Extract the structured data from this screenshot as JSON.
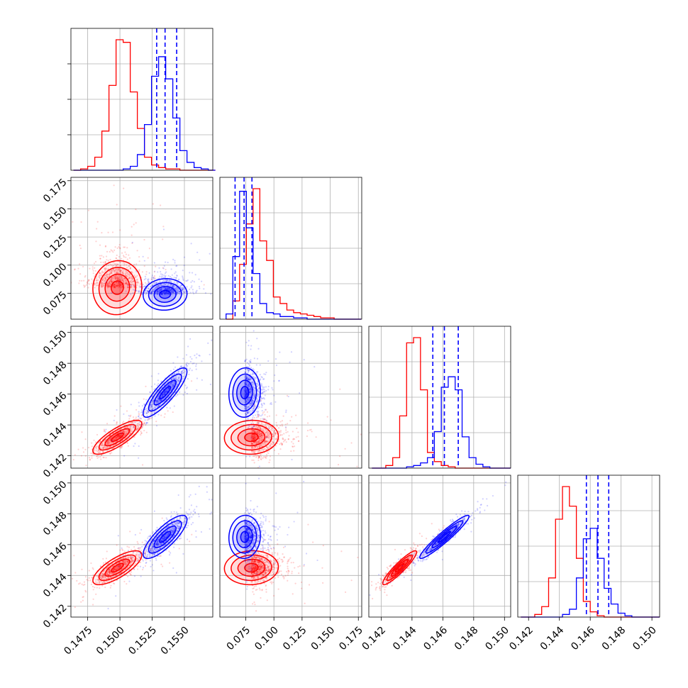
{
  "chart_data": {
    "type": "corner",
    "n_params": 4,
    "colors": {
      "red_set": "#ff0000",
      "blue_set": "#0000ff"
    },
    "grid": true,
    "params": [
      {
        "range": [
          0.1462,
          0.1572
        ],
        "ticks": [
          "0.1475",
          "0.1500",
          "0.1525",
          "0.1550"
        ]
      },
      {
        "range": [
          0.052,
          0.178
        ],
        "ticks": [
          "0.075",
          "0.100",
          "0.125",
          "0.150",
          "0.175"
        ]
      },
      {
        "range": [
          0.1412,
          0.1504
        ],
        "ticks": [
          "0.142",
          "0.144",
          "0.146",
          "0.148",
          "0.150"
        ]
      },
      {
        "range": [
          0.1413,
          0.1505
        ],
        "ticks": [
          "0.142",
          "0.144",
          "0.146",
          "0.148",
          "0.150"
        ]
      }
    ],
    "distributions": [
      {
        "name": "red",
        "color": "#ff0000",
        "means": [
          0.1498,
          0.08,
          0.1432,
          0.1445
        ],
        "sds": [
          0.00095,
          0.012,
          0.00055,
          0.00055
        ],
        "corr": [
          [
            1,
            0.05,
            0.8,
            0.75
          ],
          [
            0.05,
            1,
            0.05,
            0.05
          ],
          [
            0.8,
            0.05,
            1,
            0.92
          ],
          [
            0.75,
            0.05,
            0.92,
            1
          ]
        ],
        "median_lines": []
      },
      {
        "name": "blue",
        "color": "#0000ff",
        "means": [
          0.1535,
          0.074,
          0.1461,
          0.1465
        ],
        "sds": [
          0.00085,
          0.007,
          0.0008,
          0.0007
        ],
        "corr": [
          [
            1,
            0.05,
            0.85,
            0.8
          ],
          [
            0.05,
            1,
            0.05,
            0.05
          ],
          [
            0.85,
            0.05,
            1,
            0.95
          ],
          [
            0.8,
            0.05,
            0.95,
            1
          ]
        ],
        "median_lines": [
          [
            0.15285,
            0.1535,
            0.1544
          ],
          [
            0.0655,
            0.0735,
            0.0805
          ],
          [
            0.14535,
            0.1461,
            0.147
          ],
          [
            0.14575,
            0.1465,
            0.1472
          ]
        ]
      }
    ],
    "histograms": [
      {
        "bin_start": 0.1464,
        "bin_width": 0.00055,
        "red": [
          0,
          1,
          3,
          10,
          30,
          65,
          100,
          98,
          60,
          32,
          10,
          4,
          2,
          1,
          1,
          0,
          0,
          0,
          0,
          0
        ],
        "blue": [
          0,
          0,
          0,
          0,
          0,
          0,
          0,
          1,
          3,
          12,
          35,
          72,
          87,
          70,
          40,
          15,
          6,
          2,
          1,
          0
        ]
      },
      {
        "bin_start": 0.0575,
        "bin_width": 0.006,
        "red": [
          0,
          14,
          42,
          73,
          100,
          60,
          45,
          17,
          12,
          7,
          5,
          4,
          3,
          2,
          1,
          1,
          0,
          0,
          0,
          0
        ],
        "blue": [
          4,
          48,
          98,
          70,
          35,
          12,
          5,
          4,
          2,
          2,
          1,
          1,
          0,
          0,
          0,
          0,
          0,
          0,
          0,
          0
        ]
      },
      {
        "bin_start": 0.1414,
        "bin_width": 0.00045,
        "red": [
          0,
          0,
          2,
          8,
          40,
          96,
          100,
          60,
          12,
          5,
          2,
          1,
          0,
          0,
          0,
          0,
          0,
          0,
          0,
          0
        ],
        "blue": [
          0,
          0,
          0,
          0,
          0,
          1,
          2,
          4,
          8,
          28,
          62,
          70,
          60,
          24,
          8,
          3,
          1,
          0,
          0,
          0
        ]
      },
      {
        "bin_start": 0.1415,
        "bin_width": 0.00045,
        "red": [
          0,
          0,
          2,
          8,
          30,
          75,
          100,
          85,
          45,
          12,
          4,
          1,
          0,
          0,
          0,
          0,
          0,
          0,
          0,
          0
        ],
        "blue": [
          0,
          0,
          0,
          0,
          0,
          0,
          2,
          6,
          30,
          60,
          68,
          45,
          22,
          10,
          3,
          1,
          0,
          0,
          0,
          0
        ]
      }
    ]
  }
}
